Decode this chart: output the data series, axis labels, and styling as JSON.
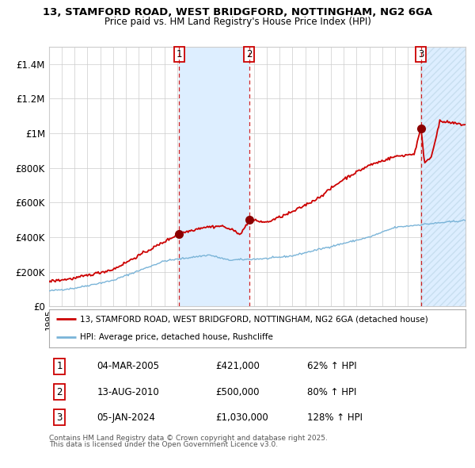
{
  "title1": "13, STAMFORD ROAD, WEST BRIDGFORD, NOTTINGHAM, NG2 6GA",
  "title2": "Price paid vs. HM Land Registry's House Price Index (HPI)",
  "xlim_start": 1995.0,
  "xlim_end": 2027.5,
  "ylim": [
    0,
    1500000
  ],
  "yticks": [
    0,
    200000,
    400000,
    600000,
    800000,
    1000000,
    1200000,
    1400000
  ],
  "ytick_labels": [
    "£0",
    "£200K",
    "£400K",
    "£600K",
    "£800K",
    "£1M",
    "£1.2M",
    "£1.4M"
  ],
  "hpi_color": "#7ab4d8",
  "price_color": "#cc0000",
  "sale_marker_color": "#8b0000",
  "sale1_x": 2005.17,
  "sale1_y": 421000,
  "sale2_x": 2010.62,
  "sale2_y": 500000,
  "sale3_x": 2024.02,
  "sale3_y": 1030000,
  "vline_color": "#cc0000",
  "shade_color": "#ddeeff",
  "hatch_color": "#c8dff0",
  "legend_label1": "13, STAMFORD ROAD, WEST BRIDGFORD, NOTTINGHAM, NG2 6GA (detached house)",
  "legend_label2": "HPI: Average price, detached house, Rushcliffe",
  "table_rows": [
    [
      "1",
      "04-MAR-2005",
      "£421,000",
      "62% ↑ HPI"
    ],
    [
      "2",
      "13-AUG-2010",
      "£500,000",
      "80% ↑ HPI"
    ],
    [
      "3",
      "05-JAN-2024",
      "£1,030,000",
      "128% ↑ HPI"
    ]
  ],
  "footnote1": "Contains HM Land Registry data © Crown copyright and database right 2025.",
  "footnote2": "This data is licensed under the Open Government Licence v3.0.",
  "bg_color": "#ffffff",
  "grid_color": "#cccccc"
}
